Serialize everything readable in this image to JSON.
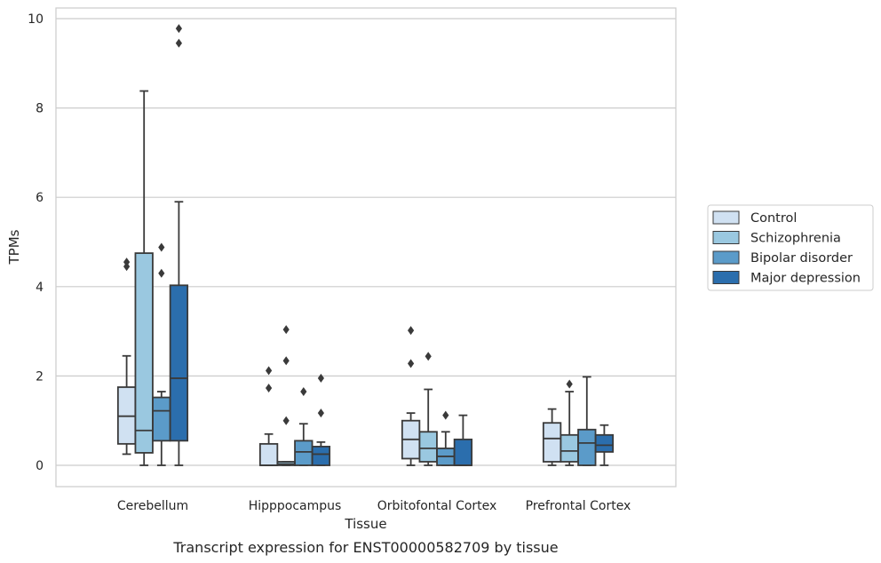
{
  "caption": "Transcript expression for ENST00000582709 by tissue",
  "chart_data": {
    "type": "box",
    "xlabel": "Tissue",
    "ylabel": "TPMs",
    "ylim": [
      -0.45,
      10.25
    ],
    "yticks": [
      0,
      2,
      4,
      6,
      8,
      10
    ],
    "grid": "horizontal",
    "legend_position": "right",
    "categories": [
      "Cerebellum",
      "Hipppocampus",
      "Orbitofontal Cortex",
      "Prefrontal Cortex"
    ],
    "series": [
      {
        "name": "Control",
        "color": "#d0e1f2",
        "boxes": [
          {
            "whislo": 0.25,
            "q1": 0.48,
            "med": 1.1,
            "q3": 1.75,
            "whishi": 2.45,
            "fliers": [
              4.45,
              4.55
            ]
          },
          {
            "whislo": 0.0,
            "q1": 0.0,
            "med": 0.0,
            "q3": 0.48,
            "whishi": 0.7,
            "fliers": [
              1.73,
              2.12
            ]
          },
          {
            "whislo": 0.0,
            "q1": 0.15,
            "med": 0.58,
            "q3": 1.0,
            "whishi": 1.17,
            "fliers": [
              2.28,
              3.02
            ]
          },
          {
            "whislo": 0.0,
            "q1": 0.08,
            "med": 0.6,
            "q3": 0.95,
            "whishi": 1.26,
            "fliers": []
          }
        ]
      },
      {
        "name": "Schizophrenia",
        "color": "#9ac8e0",
        "boxes": [
          {
            "whislo": 0.0,
            "q1": 0.28,
            "med": 0.78,
            "q3": 4.75,
            "whishi": 8.38,
            "fliers": []
          },
          {
            "whislo": 0.0,
            "q1": 0.0,
            "med": 0.03,
            "q3": 0.08,
            "whishi": 0.08,
            "fliers": [
              1.0,
              2.34,
              3.04
            ]
          },
          {
            "whislo": 0.0,
            "q1": 0.08,
            "med": 0.38,
            "q3": 0.75,
            "whishi": 1.7,
            "fliers": [
              2.44
            ]
          },
          {
            "whislo": 0.0,
            "q1": 0.08,
            "med": 0.32,
            "q3": 0.68,
            "whishi": 1.65,
            "fliers": [
              1.82
            ]
          }
        ]
      },
      {
        "name": "Bipolar disorder",
        "color": "#5b9bc9",
        "boxes": [
          {
            "whislo": 0.0,
            "q1": 0.55,
            "med": 1.22,
            "q3": 1.52,
            "whishi": 1.65,
            "fliers": [
              4.3,
              4.88
            ]
          },
          {
            "whislo": 0.0,
            "q1": 0.0,
            "med": 0.3,
            "q3": 0.55,
            "whishi": 0.93,
            "fliers": [
              1.65
            ]
          },
          {
            "whislo": 0.0,
            "q1": 0.0,
            "med": 0.2,
            "q3": 0.38,
            "whishi": 0.75,
            "fliers": [
              1.12
            ]
          },
          {
            "whislo": 0.0,
            "q1": 0.0,
            "med": 0.5,
            "q3": 0.8,
            "whishi": 1.98,
            "fliers": []
          }
        ]
      },
      {
        "name": "Major depression",
        "color": "#2b6ead",
        "boxes": [
          {
            "whislo": 0.0,
            "q1": 0.55,
            "med": 1.95,
            "q3": 4.03,
            "whishi": 5.9,
            "fliers": [
              9.45,
              9.78
            ]
          },
          {
            "whislo": 0.0,
            "q1": 0.0,
            "med": 0.25,
            "q3": 0.42,
            "whishi": 0.52,
            "fliers": [
              1.17,
              1.95
            ]
          },
          {
            "whislo": 0.0,
            "q1": 0.0,
            "med": 0.0,
            "q3": 0.58,
            "whishi": 1.12,
            "fliers": []
          },
          {
            "whislo": 0.0,
            "q1": 0.3,
            "med": 0.45,
            "q3": 0.68,
            "whishi": 0.9,
            "fliers": []
          }
        ]
      }
    ]
  }
}
